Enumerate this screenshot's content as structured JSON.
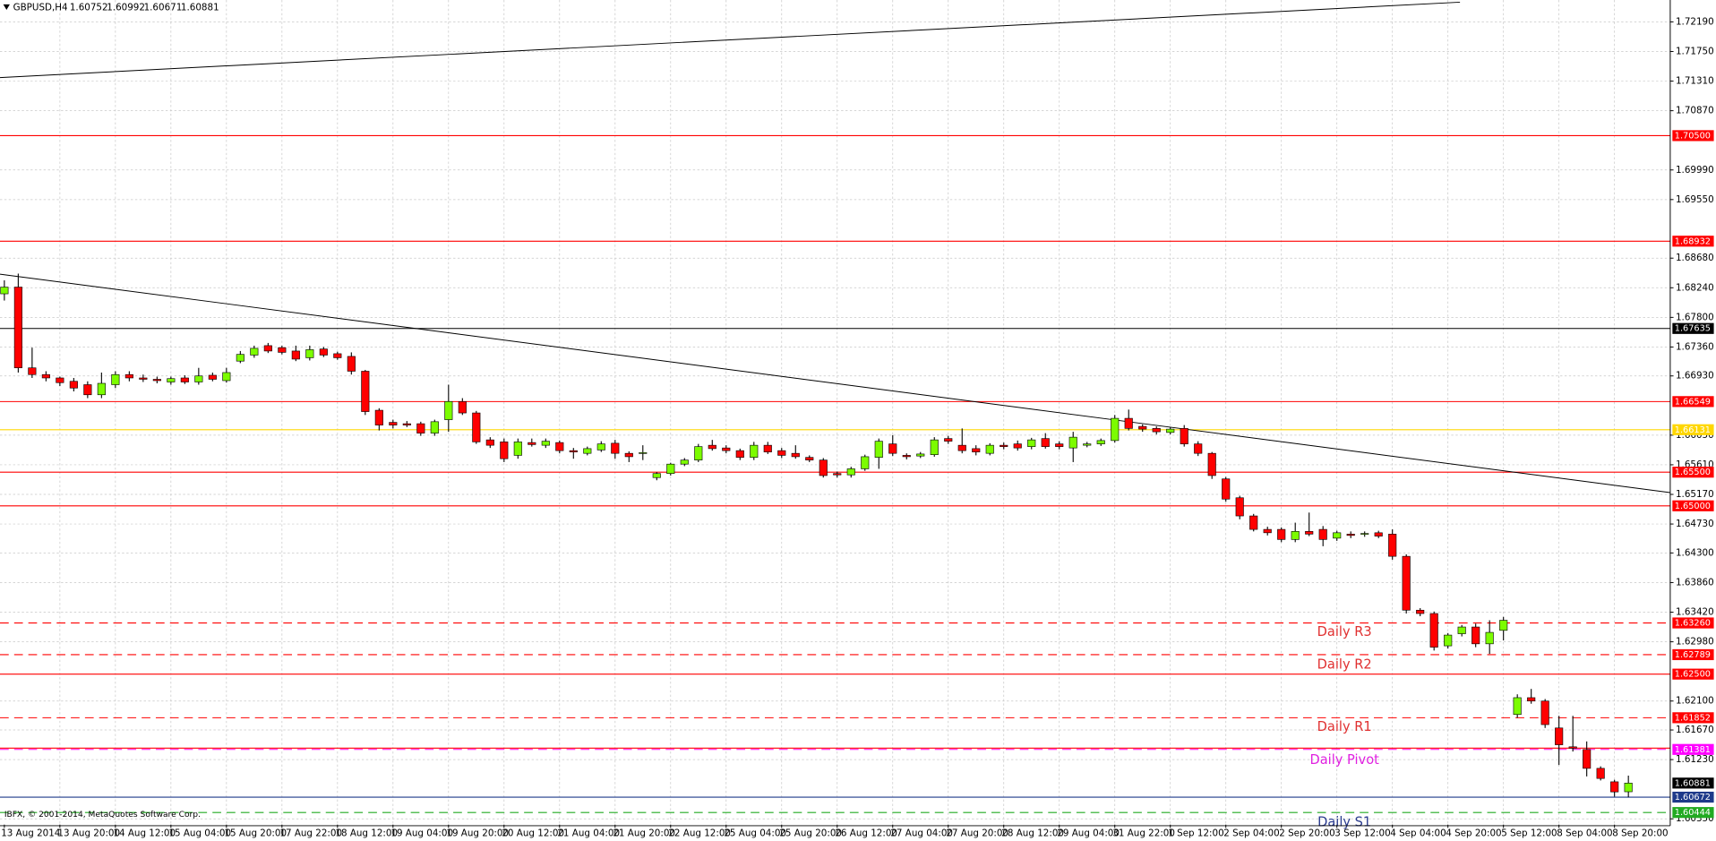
{
  "chart_data": {
    "type": "candlestick",
    "title": "GBPUSD,H4",
    "footer": "IBFX, © 2001-2014, MetaQuotes Software Corp.",
    "categories": [
      "13 Aug 2014",
      null,
      null,
      null,
      "13 Aug 20:00",
      null,
      null,
      null,
      "14 Aug 12:00",
      null,
      null,
      null,
      "15 Aug 04:00",
      null,
      null,
      null,
      "15 Aug 20:00",
      null,
      null,
      null,
      "17 Aug 22:00",
      null,
      null,
      null,
      "18 Aug 12:00",
      null,
      null,
      null,
      "19 Aug 04:00",
      null,
      null,
      null,
      "19 Aug 20:00",
      null,
      null,
      null,
      "20 Aug 12:00",
      null,
      null,
      null,
      "21 Aug 04:00",
      null,
      null,
      null,
      "21 Aug 20:00",
      null,
      null,
      null,
      "22 Aug 12:00",
      null,
      null,
      null,
      "25 Aug 04:00",
      null,
      null,
      null,
      "25 Aug 20:00",
      null,
      null,
      null,
      "26 Aug 12:00",
      null,
      null,
      null,
      "27 Aug 04:00",
      null,
      null,
      null,
      "27 Aug 20:00",
      null,
      null,
      null,
      "28 Aug 12:00",
      null,
      null,
      null,
      "29 Aug 04:00",
      null,
      null,
      null,
      "31 Aug 22:00",
      null,
      null,
      null,
      "1 Sep 12:00",
      null,
      null,
      null,
      "2 Sep 04:00",
      null,
      null,
      null,
      "2 Sep 20:00",
      null,
      null,
      null,
      "3 Sep 12:00",
      null,
      null,
      null,
      "4 Sep 04:00",
      null,
      null,
      null,
      "4 Sep 20:00",
      null,
      null,
      null,
      "5 Sep 12:00",
      null,
      null,
      null,
      "8 Sep 04:00",
      null,
      null,
      null,
      "8 Sep 20:00",
      null
    ],
    "open": [
      1.6815,
      1.6825,
      1.6705,
      1.6695,
      1.669,
      1.6685,
      1.668,
      1.6665,
      1.668,
      1.6695,
      1.669,
      1.6688,
      1.6684,
      1.669,
      1.6684,
      1.6694,
      1.6686,
      1.6715,
      1.6724,
      1.6738,
      1.6735,
      1.673,
      1.672,
      1.6733,
      1.6726,
      1.6722,
      1.67,
      1.6642,
      1.6624,
      1.6622,
      1.6622,
      1.6608,
      1.6628,
      1.6655,
      1.6638,
      1.6598,
      1.6595,
      1.6575,
      1.6594,
      1.659,
      1.6594,
      1.6582,
      1.6578,
      1.6583,
      1.6593,
      1.6578,
      1.6578,
      1.6542,
      1.6548,
      1.6562,
      1.6568,
      1.659,
      1.6586,
      1.6582,
      1.6572,
      1.659,
      1.6582,
      1.6578,
      1.6572,
      1.6568,
      1.6548,
      1.6546,
      1.6555,
      1.6572,
      1.6592,
      1.6575,
      1.6574,
      1.6576,
      1.66,
      1.659,
      1.6585,
      1.6578,
      1.659,
      1.6592,
      1.6588,
      1.66,
      1.6592,
      1.6586,
      1.659,
      1.6592,
      1.6597,
      1.663,
      1.6618,
      1.6615,
      1.6609,
      1.6615,
      1.6592,
      1.6578,
      1.654,
      1.6512,
      1.6485,
      1.6465,
      1.6465,
      1.645,
      1.6462,
      1.6465,
      1.6452,
      1.6458,
      1.6458,
      1.646,
      1.6458,
      1.6425,
      1.6345,
      1.634,
      1.6292,
      1.631,
      1.632,
      1.6295,
      1.6315,
      1.619,
      1.6215,
      1.621,
      1.617,
      1.6142,
      1.6138,
      1.611,
      1.609,
      1.60752
    ],
    "high": [
      1.6835,
      1.6845,
      1.6735,
      1.67,
      1.6692,
      1.669,
      1.6685,
      1.6698,
      1.67,
      1.67,
      1.6695,
      1.6692,
      1.6692,
      1.6694,
      1.6705,
      1.6698,
      1.6705,
      1.673,
      1.6738,
      1.6742,
      1.6738,
      1.6738,
      1.6738,
      1.6736,
      1.6729,
      1.6728,
      1.6702,
      1.6645,
      1.6628,
      1.6626,
      1.6625,
      1.6628,
      1.668,
      1.666,
      1.6641,
      1.6602,
      1.66,
      1.66,
      1.66,
      1.66,
      1.6597,
      1.6586,
      1.6588,
      1.6596,
      1.6598,
      1.6581,
      1.659,
      1.655,
      1.6564,
      1.6571,
      1.6592,
      1.6598,
      1.659,
      1.6585,
      1.6595,
      1.6595,
      1.6586,
      1.659,
      1.6575,
      1.6571,
      1.6551,
      1.6558,
      1.6576,
      1.66,
      1.6605,
      1.6578,
      1.658,
      1.6602,
      1.6604,
      1.6615,
      1.659,
      1.6593,
      1.6594,
      1.6597,
      1.6601,
      1.6608,
      1.6596,
      1.661,
      1.6595,
      1.66,
      1.6635,
      1.6643,
      1.6621,
      1.6618,
      1.6617,
      1.662,
      1.6596,
      1.658,
      1.6543,
      1.6515,
      1.6488,
      1.6469,
      1.6468,
      1.6475,
      1.649,
      1.647,
      1.6463,
      1.6462,
      1.6462,
      1.6463,
      1.6465,
      1.6428,
      1.6348,
      1.6343,
      1.6311,
      1.6323,
      1.6325,
      1.633,
      1.6335,
      1.622,
      1.6228,
      1.6213,
      1.6188,
      1.6188,
      1.615,
      1.6113,
      1.6093,
      1.60992
    ],
    "low": [
      1.6805,
      1.6698,
      1.669,
      1.6685,
      1.6678,
      1.667,
      1.666,
      1.666,
      1.6675,
      1.6685,
      1.6684,
      1.6682,
      1.668,
      1.6681,
      1.668,
      1.6685,
      1.6683,
      1.6712,
      1.672,
      1.6727,
      1.6725,
      1.6715,
      1.6716,
      1.6721,
      1.6717,
      1.6695,
      1.6635,
      1.6612,
      1.6615,
      1.6617,
      1.6604,
      1.6604,
      1.661,
      1.6635,
      1.6592,
      1.6586,
      1.6565,
      1.657,
      1.6588,
      1.6586,
      1.6578,
      1.657,
      1.6575,
      1.658,
      1.657,
      1.6565,
      1.6568,
      1.6538,
      1.6545,
      1.6559,
      1.6565,
      1.6582,
      1.6578,
      1.6568,
      1.6568,
      1.6577,
      1.6571,
      1.657,
      1.6565,
      1.6542,
      1.6542,
      1.6542,
      1.6552,
      1.6555,
      1.6574,
      1.6569,
      1.6571,
      1.6573,
      1.6592,
      1.6578,
      1.6575,
      1.6575,
      1.6584,
      1.6582,
      1.6584,
      1.6585,
      1.6584,
      1.6565,
      1.6587,
      1.6589,
      1.6594,
      1.6612,
      1.661,
      1.6606,
      1.6606,
      1.6588,
      1.6574,
      1.654,
      1.6506,
      1.648,
      1.6462,
      1.6456,
      1.6446,
      1.6446,
      1.6455,
      1.644,
      1.6448,
      1.6452,
      1.6454,
      1.6452,
      1.642,
      1.634,
      1.6336,
      1.6285,
      1.6288,
      1.6306,
      1.629,
      1.628,
      1.63,
      1.6185,
      1.6206,
      1.617,
      1.6115,
      1.6135,
      1.6098,
      1.6092,
      1.6068,
      1.60671
    ],
    "close": [
      1.6825,
      1.6705,
      1.6695,
      1.669,
      1.6683,
      1.6675,
      1.6665,
      1.6682,
      1.6695,
      1.669,
      1.6688,
      1.6686,
      1.6689,
      1.6684,
      1.6693,
      1.6688,
      1.6698,
      1.6725,
      1.6734,
      1.673,
      1.6728,
      1.6718,
      1.6732,
      1.6724,
      1.672,
      1.67,
      1.664,
      1.662,
      1.662,
      1.662,
      1.6608,
      1.6625,
      1.6655,
      1.6638,
      1.6595,
      1.659,
      1.657,
      1.6595,
      1.6591,
      1.6596,
      1.6582,
      1.658,
      1.6585,
      1.6592,
      1.6578,
      1.6573,
      1.6579,
      1.6548,
      1.6562,
      1.6568,
      1.6588,
      1.6585,
      1.6582,
      1.6572,
      1.659,
      1.658,
      1.6575,
      1.6573,
      1.6568,
      1.6545,
      1.6546,
      1.6555,
      1.6573,
      1.6596,
      1.6578,
      1.6573,
      1.6577,
      1.6598,
      1.6596,
      1.6582,
      1.658,
      1.659,
      1.6588,
      1.6586,
      1.6598,
      1.6588,
      1.6588,
      1.6602,
      1.6592,
      1.6597,
      1.663,
      1.6615,
      1.6614,
      1.661,
      1.6614,
      1.6592,
      1.6578,
      1.6545,
      1.651,
      1.6485,
      1.6465,
      1.646,
      1.645,
      1.6462,
      1.6458,
      1.645,
      1.646,
      1.6456,
      1.6459,
      1.6455,
      1.6425,
      1.6345,
      1.634,
      1.629,
      1.6308,
      1.632,
      1.6295,
      1.6312,
      1.633,
      1.6215,
      1.621,
      1.6175,
      1.6145,
      1.614,
      1.611,
      1.6095,
      1.6075,
      1.60881
    ],
    "up_color": "#7cfc00",
    "down_color": "#ff0000",
    "ylim": [
      1.60264,
      1.72515
    ],
    "yticks": [
      {
        "value": 1.7219,
        "label": "1.72190"
      },
      {
        "value": 1.7175,
        "label": "1.71750"
      },
      {
        "value": 1.7131,
        "label": "1.71310"
      },
      {
        "value": 1.7087,
        "label": "1.70870"
      },
      {
        "value": 1.6999,
        "label": "1.69990"
      },
      {
        "value": 1.6955,
        "label": "1.69550"
      },
      {
        "value": 1.6868,
        "label": "1.68680"
      },
      {
        "value": 1.6824,
        "label": "1.68240"
      },
      {
        "value": 1.678,
        "label": "1.67800"
      },
      {
        "value": 1.6736,
        "label": "1.67360"
      },
      {
        "value": 1.6693,
        "label": "1.66930"
      },
      {
        "value": 1.6605,
        "label": "1.66050"
      },
      {
        "value": 1.6561,
        "label": "1.65610"
      },
      {
        "value": 1.6517,
        "label": "1.65170"
      },
      {
        "value": 1.6473,
        "label": "1.64730"
      },
      {
        "value": 1.643,
        "label": "1.64300"
      },
      {
        "value": 1.6386,
        "label": "1.63860"
      },
      {
        "value": 1.6342,
        "label": "1.63420"
      },
      {
        "value": 1.6298,
        "label": "1.62980"
      },
      {
        "value": 1.621,
        "label": "1.62100"
      },
      {
        "value": 1.6167,
        "label": "1.61670"
      },
      {
        "value": 1.6123,
        "label": "1.61230"
      },
      {
        "value": 1.6035,
        "label": "1.60350"
      }
    ],
    "grid": true,
    "levels": [
      {
        "value": 1.705,
        "label": "1.70500",
        "color": "#ff0000",
        "style": "solid"
      },
      {
        "value": 1.68932,
        "label": "1.68932",
        "color": "#ff0000",
        "style": "solid"
      },
      {
        "value": 1.67635,
        "label": "1.67635",
        "color": "#000000",
        "style": "solid"
      },
      {
        "value": 1.66549,
        "label": "1.66549",
        "color": "#ff0000",
        "style": "solid"
      },
      {
        "value": 1.66131,
        "label": "1.66131",
        "color": "#ffd700",
        "style": "solid"
      },
      {
        "value": 1.655,
        "label": "1.65500",
        "color": "#ff0000",
        "style": "solid"
      },
      {
        "value": 1.65,
        "label": "1.65000",
        "color": "#ff0000",
        "style": "solid"
      },
      {
        "value": 1.6326,
        "label": "1.63260",
        "color": "#ff0000",
        "style": "dashed"
      },
      {
        "value": 1.62789,
        "label": "1.62789",
        "color": "#ff0000",
        "style": "dashed"
      },
      {
        "value": 1.625,
        "label": "1.62500",
        "color": "#ff0000",
        "style": "solid"
      },
      {
        "value": 1.61852,
        "label": "1.61852",
        "color": "#ff0000",
        "style": "dashed"
      },
      {
        "value": 1.614,
        "color": "#ff0000",
        "style": "solid"
      },
      {
        "value": 1.61381,
        "label": "1.61381",
        "color": "#ff00ff",
        "style": "dashed"
      },
      {
        "value": 1.60672,
        "label": "1.60672",
        "color": "#1e3a8a",
        "style": "solid"
      },
      {
        "value": 1.60444,
        "label": "1.60444",
        "color": "#22aa22",
        "style": "dashed"
      }
    ],
    "annotations": [
      {
        "text": "Daily R3",
        "color": "#e03030"
      },
      {
        "text": "Daily R2",
        "color": "#e03030"
      },
      {
        "text": "Daily R1",
        "color": "#e03030"
      },
      {
        "text": "Daily Pivot",
        "color": "#e020e0"
      },
      {
        "text": "Daily S1",
        "color": "#2a3b8f"
      }
    ]
  }
}
